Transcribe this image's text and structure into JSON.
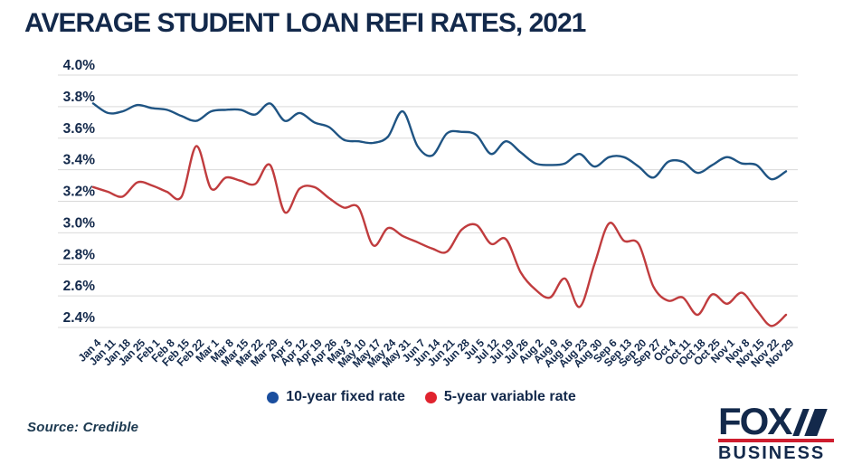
{
  "title": "AVERAGE STUDENT LOAN REFI RATES, 2021",
  "source": "Source: Credible",
  "logo": {
    "line1": "FOX",
    "line2": "BUSINESS"
  },
  "legend": {
    "items": [
      {
        "label": "10-year fixed rate",
        "marker_color": "#1a4e9e"
      },
      {
        "label": "5-year variable rate",
        "marker_color": "#e0232e"
      }
    ]
  },
  "colors": {
    "text_navy": "#13294b",
    "gridline": "#d9d9d9",
    "fixed_line": "#1f5483",
    "variable_line": "#c03c3e",
    "logo_red": "#ce1d2e"
  },
  "chart_data": {
    "type": "line",
    "title": "AVERAGE STUDENT LOAN REFI RATES, 2021",
    "grid": true,
    "legend_position": "bottom",
    "ylim": [
      2.4,
      4.0
    ],
    "ytick_labels": [
      "4.0%",
      "3.8%",
      "3.6%",
      "3.4%",
      "3.2%",
      "3.0%",
      "2.8%",
      "2.6%",
      "2.4%"
    ],
    "xtick_rotation": 45,
    "x": [
      "Jan 4",
      "Jan 11",
      "Jan 18",
      "Jan 25",
      "Feb 1",
      "Feb 8",
      "Feb 15",
      "Feb 22",
      "Mar 1",
      "Mar 8",
      "Mar 15",
      "Mar 22",
      "Mar 29",
      "Apr 5",
      "Apr 12",
      "Apr 19",
      "Apr 26",
      "May 3",
      "May 10",
      "May 17",
      "May 24",
      "May 31",
      "Jun 7",
      "Jun 14",
      "Jun 21",
      "Jun 28",
      "Jul 5",
      "Jul 12",
      "Jul 19",
      "Jul 26",
      "Aug 2",
      "Aug 9",
      "Aug 16",
      "Aug 23",
      "Aug 30",
      "Sep 6",
      "Sep 13",
      "Sep 20",
      "Sep 27",
      "Oct 4",
      "Oct 11",
      "Oct 18",
      "Oct 25",
      "Nov 1",
      "Nov 8",
      "Nov 15",
      "Nov 22",
      "Nov 29"
    ],
    "series": [
      {
        "name": "10-year fixed rate",
        "color": "#1f5483",
        "values": [
          3.82,
          3.76,
          3.77,
          3.81,
          3.79,
          3.78,
          3.74,
          3.71,
          3.77,
          3.78,
          3.78,
          3.75,
          3.82,
          3.71,
          3.76,
          3.7,
          3.67,
          3.59,
          3.58,
          3.57,
          3.61,
          3.77,
          3.55,
          3.49,
          3.63,
          3.64,
          3.62,
          3.5,
          3.58,
          3.51,
          3.44,
          3.43,
          3.44,
          3.5,
          3.42,
          3.48,
          3.48,
          3.42,
          3.35,
          3.45,
          3.45,
          3.38,
          3.43,
          3.48,
          3.44,
          3.43,
          3.34,
          3.39
        ]
      },
      {
        "name": "5-year variable rate",
        "color": "#c03c3e",
        "values": [
          3.29,
          3.26,
          3.23,
          3.32,
          3.3,
          3.26,
          3.23,
          3.55,
          3.28,
          3.35,
          3.33,
          3.31,
          3.43,
          3.13,
          3.28,
          3.29,
          3.22,
          3.16,
          3.16,
          2.92,
          3.03,
          2.98,
          2.94,
          2.9,
          2.88,
          3.02,
          3.05,
          2.93,
          2.96,
          2.75,
          2.64,
          2.59,
          2.71,
          2.53,
          2.8,
          3.06,
          2.95,
          2.93,
          2.66,
          2.57,
          2.59,
          2.48,
          2.61,
          2.55,
          2.62,
          2.51,
          2.41,
          2.48
        ]
      }
    ]
  }
}
